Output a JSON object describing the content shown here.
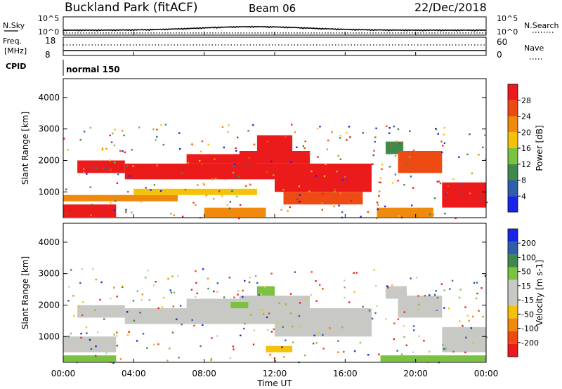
{
  "header": {
    "station": "Buckland Park (fitACF)",
    "beam": "Beam 06",
    "date": "22/Dec/2018"
  },
  "top_panels": {
    "nsky_label": "N.Sky",
    "nsky_ticks": [
      "10^5",
      "10^0"
    ],
    "nsearch_label": "N.Search",
    "nsearch_ticks": [
      "10^5",
      "10^0"
    ],
    "freq_label_1": "Freq.",
    "freq_label_2": "[MHz]",
    "freq_ticks": [
      "18",
      "8"
    ],
    "nave_label": "Nave",
    "nave_ticks": [
      "60",
      "0"
    ],
    "cpid_label": "CPID",
    "cpid_value": "normal 150"
  },
  "chart_data": [
    {
      "type": "heatmap",
      "name": "power",
      "ylabel": "Slant Range [km]",
      "yticks": [
        "4000",
        "3000",
        "2000",
        "1000"
      ],
      "colorbar_label": "Power [dB]",
      "colorbar_ticks": [
        "28",
        "24",
        "20",
        "16",
        "12",
        "8",
        "4"
      ],
      "colors": [
        "#1a24e8",
        "#2f5fa8",
        "#3e8a4c",
        "#7cc242",
        "#f5c20a",
        "#f08a0c",
        "#ee4a14",
        "#ec1b1b"
      ],
      "regions": [
        {
          "t0": 0.0,
          "t1": 3.0,
          "r0": 200,
          "r1": 600,
          "c": "#ec1b1b"
        },
        {
          "t0": 0.0,
          "t1": 6.5,
          "r0": 700,
          "r1": 900,
          "c": "#f08a0c"
        },
        {
          "t0": 0.8,
          "t1": 3.5,
          "r0": 1600,
          "r1": 2000,
          "c": "#ec1b1b"
        },
        {
          "t0": 3.5,
          "t1": 12.0,
          "r0": 1400,
          "r1": 1900,
          "c": "#ec1b1b"
        },
        {
          "t0": 7.0,
          "t1": 11.0,
          "r0": 1900,
          "r1": 2200,
          "c": "#ec1b1b"
        },
        {
          "t0": 10.0,
          "t1": 14.0,
          "r0": 1900,
          "r1": 2300,
          "c": "#ec1b1b"
        },
        {
          "t0": 11.0,
          "t1": 13.0,
          "r0": 2300,
          "r1": 2800,
          "c": "#ec1b1b"
        },
        {
          "t0": 12.0,
          "t1": 17.5,
          "r0": 1000,
          "r1": 1900,
          "c": "#ec1b1b"
        },
        {
          "t0": 12.5,
          "t1": 17.0,
          "r0": 600,
          "r1": 1000,
          "c": "#ee4a14"
        },
        {
          "t0": 4.0,
          "t1": 11.0,
          "r0": 900,
          "r1": 1100,
          "c": "#f5c20a"
        },
        {
          "t0": 8.0,
          "t1": 11.5,
          "r0": 200,
          "r1": 500,
          "c": "#f08a0c"
        },
        {
          "t0": 18.3,
          "t1": 19.3,
          "r0": 2200,
          "r1": 2600,
          "c": "#3e8a4c"
        },
        {
          "t0": 19.0,
          "t1": 21.5,
          "r0": 1600,
          "r1": 2300,
          "c": "#ee4a14"
        },
        {
          "t0": 21.5,
          "t1": 24.0,
          "r0": 500,
          "r1": 1300,
          "c": "#ec1b1b"
        },
        {
          "t0": 17.8,
          "t1": 21.0,
          "r0": 200,
          "r1": 500,
          "c": "#f08a0c"
        }
      ]
    },
    {
      "type": "heatmap",
      "name": "velocity",
      "ylabel": "Slant Range [km]",
      "yticks": [
        "4000",
        "3000",
        "2000",
        "1000"
      ],
      "colorbar_label": "Velocity [m s-1]",
      "colorbar_ticks": [
        "200",
        "100",
        "50",
        "15",
        "-15",
        "-50",
        "-100",
        "-200"
      ],
      "colors": [
        "#ec1b1b",
        "#ee4a14",
        "#f08a0c",
        "#f5c20a",
        "#c8c8c4",
        "#c8c8c4",
        "#7cc242",
        "#3e8a4c",
        "#2f5fa8",
        "#1a24e8"
      ],
      "regions": [
        {
          "t0": 0.0,
          "t1": 3.0,
          "r0": 500,
          "r1": 1000,
          "c": "#c8c8c4"
        },
        {
          "t0": 0.8,
          "t1": 3.5,
          "r0": 1600,
          "r1": 2000,
          "c": "#c8c8c4"
        },
        {
          "t0": 3.5,
          "t1": 12.0,
          "r0": 1400,
          "r1": 1900,
          "c": "#c8c8c4"
        },
        {
          "t0": 7.0,
          "t1": 11.0,
          "r0": 1900,
          "r1": 2200,
          "c": "#c8c8c4"
        },
        {
          "t0": 10.0,
          "t1": 14.0,
          "r0": 1900,
          "r1": 2300,
          "c": "#c8c8c4"
        },
        {
          "t0": 11.0,
          "t1": 12.0,
          "r0": 2300,
          "r1": 2600,
          "c": "#7cc242"
        },
        {
          "t0": 12.0,
          "t1": 17.5,
          "r0": 1000,
          "r1": 1900,
          "c": "#c8c8c4"
        },
        {
          "t0": 9.5,
          "t1": 10.5,
          "r0": 1900,
          "r1": 2100,
          "c": "#7cc242"
        },
        {
          "t0": 11.5,
          "t1": 13.0,
          "r0": 500,
          "r1": 700,
          "c": "#f5c20a"
        },
        {
          "t0": 18.3,
          "t1": 19.5,
          "r0": 2200,
          "r1": 2600,
          "c": "#c8c8c4"
        },
        {
          "t0": 19.0,
          "t1": 21.5,
          "r0": 1600,
          "r1": 2300,
          "c": "#c8c8c4"
        },
        {
          "t0": 21.5,
          "t1": 24.0,
          "r0": 500,
          "r1": 1300,
          "c": "#c8c8c4"
        },
        {
          "t0": 18.0,
          "t1": 24.0,
          "r0": 200,
          "r1": 400,
          "c": "#7cc242"
        },
        {
          "t0": 0.0,
          "t1": 3.0,
          "r0": 200,
          "r1": 400,
          "c": "#7cc242"
        }
      ]
    }
  ],
  "x_axis": {
    "ticks": [
      "00:00",
      "04:00",
      "08:00",
      "12:00",
      "16:00",
      "20:00",
      "00:00"
    ],
    "label": "Time UT"
  }
}
